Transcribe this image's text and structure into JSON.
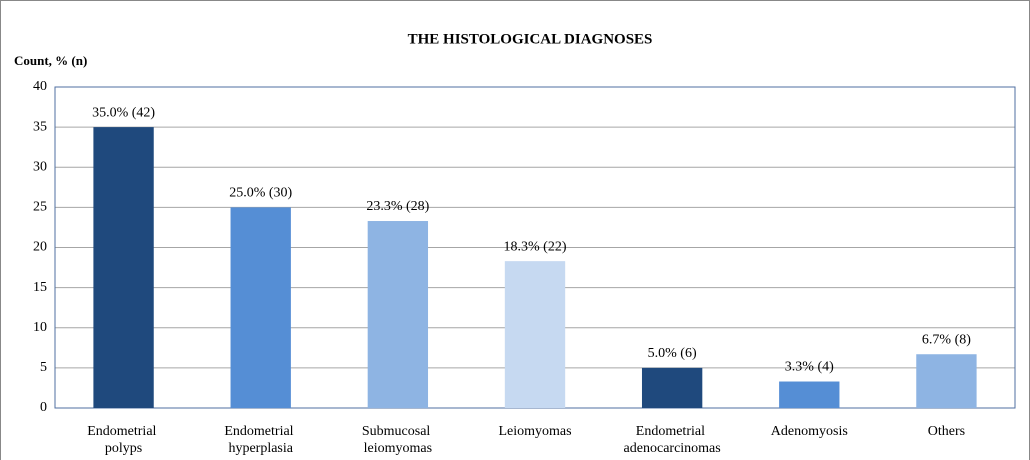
{
  "chart_data": {
    "type": "bar",
    "title": "THE HISTOLOGICAL DIAGNOSES",
    "y_label": "Count, % (n)",
    "categories": [
      "Endometrial polyps",
      "Endometrial hyperplasia",
      "Submucosal leiomyomas",
      "Leiomyomas",
      "Endometrial adenocarcinomas",
      "Adenomyosis",
      "Others"
    ],
    "values": [
      35.0,
      25.0,
      23.3,
      18.3,
      5.0,
      3.3,
      6.7
    ],
    "value_labels": [
      "35.0% (42)",
      "25.0% (30)",
      "23.3% (28)",
      "18.3% (22)",
      "5.0% (6)",
      "3.3% (4)",
      "6.7% (8)"
    ],
    "colors": [
      "#1f497d",
      "#558ed5",
      "#8eb4e3",
      "#c6d9f1",
      "#1f497d",
      "#558ed5",
      "#8eb4e3"
    ],
    "ylim": [
      0,
      40
    ],
    "yticks": [
      0,
      5,
      10,
      15,
      20,
      25,
      30,
      35,
      40
    ],
    "grid": true
  }
}
